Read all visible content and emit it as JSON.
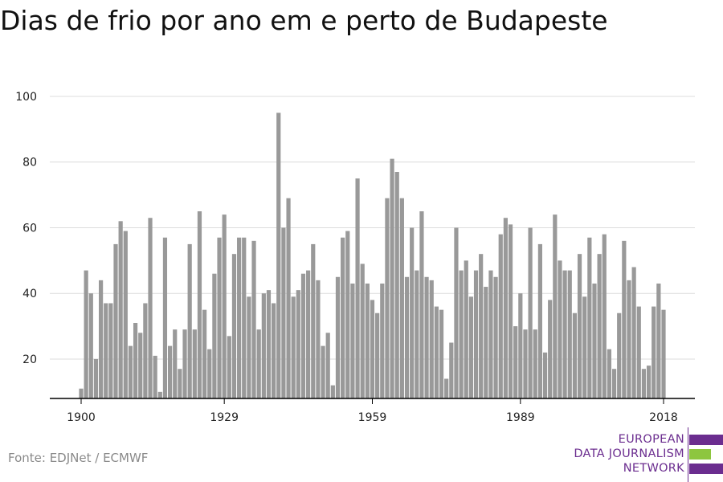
{
  "title": "Dias de frio por ano em e perto de Budapeste",
  "source": "Fonte: EDJNet / ECMWF",
  "logo": {
    "lines": [
      "EUROPEAN",
      "DATA JOURNALISM",
      "NETWORK"
    ],
    "colors": {
      "purple": "#6b2d8f",
      "green": "#8dc63f"
    }
  },
  "colors": {
    "bar": "#999999",
    "grid": "#dcdcdc",
    "axis": "#000000",
    "text": "#222222"
  },
  "chart_data": {
    "type": "bar",
    "title": "Dias de frio por ano em e perto de Budapeste",
    "xlabel": "",
    "ylabel": "",
    "ylim": [
      8,
      100
    ],
    "y_ticks": [
      20,
      40,
      60,
      80,
      100
    ],
    "x_ticks": [
      1900,
      1929,
      1959,
      1989,
      2018
    ],
    "grid": "horizontal",
    "x": [
      1900,
      1901,
      1902,
      1903,
      1904,
      1905,
      1906,
      1907,
      1908,
      1909,
      1910,
      1911,
      1912,
      1913,
      1914,
      1915,
      1916,
      1917,
      1918,
      1919,
      1920,
      1921,
      1922,
      1923,
      1924,
      1925,
      1926,
      1927,
      1928,
      1929,
      1930,
      1931,
      1932,
      1933,
      1934,
      1935,
      1936,
      1937,
      1938,
      1939,
      1940,
      1941,
      1942,
      1943,
      1944,
      1945,
      1946,
      1947,
      1948,
      1949,
      1950,
      1951,
      1952,
      1953,
      1954,
      1955,
      1956,
      1957,
      1958,
      1959,
      1960,
      1961,
      1962,
      1963,
      1964,
      1965,
      1966,
      1967,
      1968,
      1969,
      1970,
      1971,
      1972,
      1973,
      1974,
      1975,
      1976,
      1977,
      1978,
      1979,
      1980,
      1981,
      1982,
      1983,
      1984,
      1985,
      1986,
      1987,
      1988,
      1989,
      1990,
      1991,
      1992,
      1993,
      1994,
      1995,
      1996,
      1997,
      1998,
      1999,
      2000,
      2001,
      2002,
      2003,
      2004,
      2005,
      2006,
      2007,
      2008,
      2009,
      2010,
      2011,
      2012,
      2013,
      2014,
      2015,
      2016,
      2017,
      2018
    ],
    "values": [
      11,
      47,
      40,
      20,
      44,
      37,
      37,
      55,
      62,
      59,
      24,
      31,
      28,
      37,
      63,
      21,
      10,
      57,
      24,
      29,
      17,
      29,
      55,
      29,
      65,
      35,
      23,
      46,
      57,
      64,
      27,
      52,
      57,
      57,
      39,
      56,
      29,
      40,
      41,
      37,
      95,
      60,
      69,
      39,
      41,
      46,
      47,
      55,
      44,
      24,
      28,
      12,
      45,
      57,
      59,
      43,
      75,
      49,
      43,
      38,
      34,
      43,
      69,
      81,
      77,
      69,
      45,
      60,
      47,
      65,
      45,
      44,
      36,
      35,
      14,
      25,
      60,
      47,
      50,
      39,
      47,
      52,
      42,
      47,
      45,
      58,
      63,
      61,
      30,
      40,
      29,
      60,
      29,
      55,
      22,
      38,
      64,
      50,
      47,
      47,
      34,
      52,
      39,
      57,
      43,
      52,
      58,
      23,
      17,
      34,
      56,
      44,
      48,
      36,
      17,
      18,
      36,
      43,
      35
    ]
  }
}
